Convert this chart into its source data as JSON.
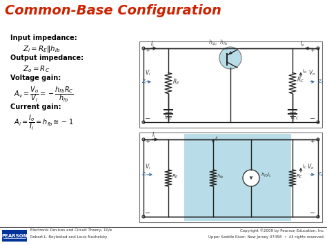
{
  "title": "Common-Base Configuration",
  "title_color": "#cc2200",
  "title_fontsize": 14,
  "bg_color": "#ffffff",
  "footer_left_line1": "Electronic Devices and Circuit Theory, 10/e",
  "footer_left_line2": "Robert L. Boylestad and Louis Nashelsky",
  "footer_right_line1": "Copyright ©2009 by Pearson Education, Inc.",
  "footer_right_line2": "Upper Saddle River, New Jersey 07458  •  All rights reserved.",
  "pearson_box_color": "#003399",
  "pearson_text": "PEARSON",
  "circuit_bg": "#b8dde8",
  "line_color": "#222222",
  "arrow_color": "#336699",
  "label_color": "#333333"
}
